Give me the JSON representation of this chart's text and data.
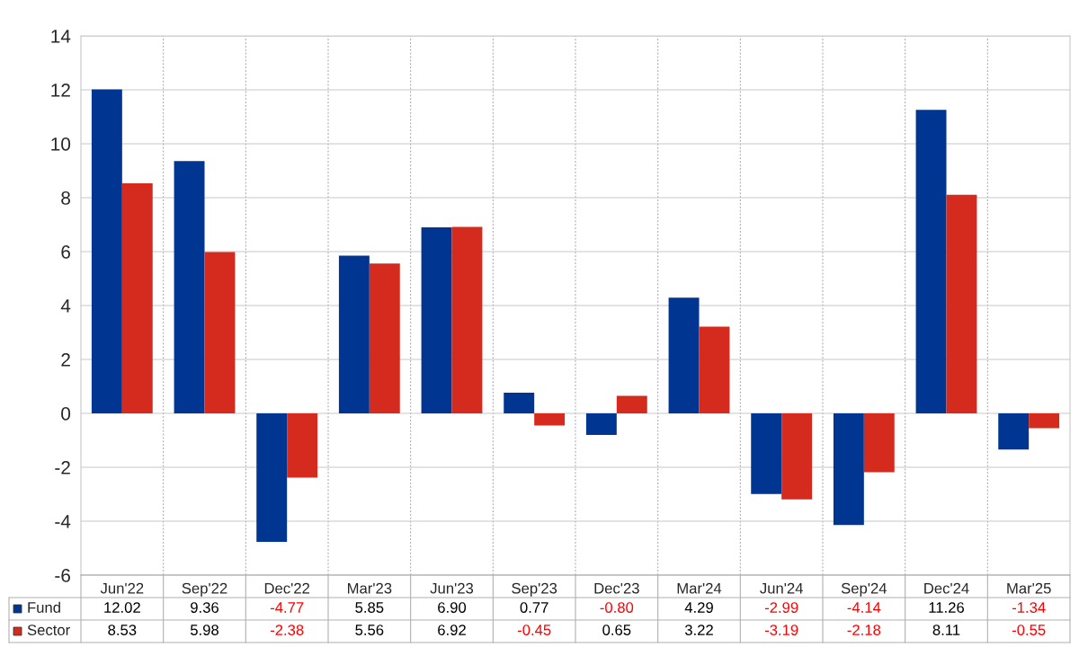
{
  "chart_data": {
    "type": "bar",
    "categories": [
      "Jun'22",
      "Sep'22",
      "Dec'22",
      "Mar'23",
      "Jun'23",
      "Sep'23",
      "Dec'23",
      "Mar'24",
      "Jun'24",
      "Sep'24",
      "Dec'24",
      "Mar'25"
    ],
    "series": [
      {
        "name": "Fund",
        "color": "#003591",
        "values": [
          12.02,
          9.36,
          -4.77,
          5.85,
          6.9,
          0.77,
          -0.8,
          4.29,
          -2.99,
          -4.14,
          11.26,
          -1.34
        ],
        "value_labels": [
          "12.02",
          "9.36",
          "-4.77",
          "5.85",
          "6.90",
          "0.77",
          "-0.80",
          "4.29",
          "-2.99",
          "-4.14",
          "11.26",
          "-1.34"
        ]
      },
      {
        "name": "Sector",
        "color": "#d52b1e",
        "values": [
          8.53,
          5.98,
          -2.38,
          5.56,
          6.92,
          -0.45,
          0.65,
          3.22,
          -3.19,
          -2.18,
          8.11,
          -0.55
        ],
        "value_labels": [
          "8.53",
          "5.98",
          "-2.38",
          "5.56",
          "6.92",
          "-0.45",
          "0.65",
          "3.22",
          "-3.19",
          "-2.18",
          "8.11",
          "-0.55"
        ]
      }
    ],
    "ylim": [
      -6,
      14
    ],
    "yticks": [
      -6,
      -4,
      -2,
      0,
      2,
      4,
      6,
      8,
      10,
      12,
      14
    ],
    "grid": true,
    "legend": "bottom"
  }
}
